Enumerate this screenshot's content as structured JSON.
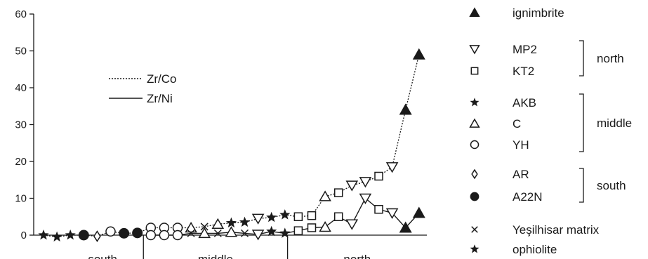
{
  "chart_data": {
    "type": "line",
    "ylim": [
      0,
      60
    ],
    "yticks": [
      0,
      10,
      20,
      30,
      40,
      50,
      60
    ],
    "grid": false,
    "regions": [
      "south",
      "middle",
      "north"
    ],
    "line_legend": [
      {
        "name": "Zr/Co",
        "style": "dotted"
      },
      {
        "name": "Zr/Ni",
        "style": "solid"
      }
    ],
    "series": [
      {
        "name": "Zr/Co",
        "style": "dotted",
        "points": [
          {
            "x": 0,
            "y": 0,
            "s": "star"
          },
          {
            "x": 1,
            "y": -0.5,
            "s": "star"
          },
          {
            "x": 2,
            "y": 0,
            "s": "star"
          },
          {
            "x": 3,
            "y": 0,
            "s": "dot"
          },
          {
            "x": 4,
            "y": -0.3,
            "s": "diamond"
          },
          {
            "x": 5,
            "y": 1,
            "s": "circle"
          },
          {
            "x": 6,
            "y": 0.5,
            "s": "dot"
          },
          {
            "x": 7,
            "y": 0.6,
            "s": "dot"
          },
          {
            "x": 8,
            "y": 2,
            "s": "circle"
          },
          {
            "x": 9,
            "y": 2,
            "s": "circle"
          },
          {
            "x": 10,
            "y": 2,
            "s": "circle"
          },
          {
            "x": 11,
            "y": 2,
            "s": "tri"
          },
          {
            "x": 12,
            "y": 2.3,
            "s": "cross"
          },
          {
            "x": 13,
            "y": 3,
            "s": "tri"
          },
          {
            "x": 14,
            "y": 3.3,
            "s": "star"
          },
          {
            "x": 15,
            "y": 3.5,
            "s": "star"
          },
          {
            "x": 16,
            "y": 4.5,
            "s": "invtri"
          },
          {
            "x": 17,
            "y": 4.8,
            "s": "star"
          },
          {
            "x": 18,
            "y": 5.5,
            "s": "star"
          },
          {
            "x": 19,
            "y": 5,
            "s": "square"
          },
          {
            "x": 20,
            "y": 5.3,
            "s": "square"
          },
          {
            "x": 21,
            "y": 10.5,
            "s": "tri"
          },
          {
            "x": 22,
            "y": 11.5,
            "s": "square"
          },
          {
            "x": 23,
            "y": 13.5,
            "s": "invtri"
          },
          {
            "x": 24,
            "y": 14.5,
            "s": "invtri"
          },
          {
            "x": 25,
            "y": 16,
            "s": "square"
          },
          {
            "x": 26,
            "y": 18.5,
            "s": "invtri"
          },
          {
            "x": 27,
            "y": 34,
            "s": "filltri"
          },
          {
            "x": 28,
            "y": 49,
            "s": "filltri"
          }
        ]
      },
      {
        "name": "Zr/Ni",
        "style": "solid",
        "points": [
          {
            "x": 8,
            "y": 0,
            "s": "circle"
          },
          {
            "x": 9,
            "y": 0,
            "s": "circle"
          },
          {
            "x": 10,
            "y": 0,
            "s": "circle"
          },
          {
            "x": 11,
            "y": 0.5,
            "s": "cross"
          },
          {
            "x": 12,
            "y": 0.5,
            "s": "tri"
          },
          {
            "x": 13,
            "y": 0.5,
            "s": "cross"
          },
          {
            "x": 14,
            "y": 0.8,
            "s": "tri"
          },
          {
            "x": 15,
            "y": 0.5,
            "s": "cross"
          },
          {
            "x": 16,
            "y": 0.2,
            "s": "invtri"
          },
          {
            "x": 17,
            "y": 1,
            "s": "star"
          },
          {
            "x": 18,
            "y": 0.5,
            "s": "star"
          },
          {
            "x": 19,
            "y": 1.2,
            "s": "square"
          },
          {
            "x": 20,
            "y": 2,
            "s": "square"
          },
          {
            "x": 21,
            "y": 2.2,
            "s": "tri"
          },
          {
            "x": 22,
            "y": 5,
            "s": "square"
          },
          {
            "x": 23,
            "y": 3,
            "s": "invtri"
          },
          {
            "x": 24,
            "y": 10,
            "s": "invtri"
          },
          {
            "x": 25,
            "y": 7,
            "s": "square"
          },
          {
            "x": 26,
            "y": 6,
            "s": "invtri"
          },
          {
            "x": 27,
            "y": 2,
            "s": "filltri"
          },
          {
            "x": 28,
            "y": 6,
            "s": "filltri"
          }
        ]
      }
    ],
    "symbol_legend": [
      {
        "symbol": "filltri",
        "label": "ignimbrite"
      },
      {
        "symbol": "invtri",
        "label": "MP2"
      },
      {
        "symbol": "square",
        "label": "KT2"
      },
      {
        "symbol": "star",
        "label": "AKB"
      },
      {
        "symbol": "tri",
        "label": "C"
      },
      {
        "symbol": "circle",
        "label": "YH"
      },
      {
        "symbol": "diamond",
        "label": "AR"
      },
      {
        "symbol": "dot",
        "label": "A22N"
      },
      {
        "symbol": "cross",
        "label": "Yeşilhisar matrix"
      },
      {
        "symbol": "star",
        "label": "ophiolite"
      }
    ],
    "legend_groups": [
      "north",
      "middle",
      "south"
    ]
  }
}
